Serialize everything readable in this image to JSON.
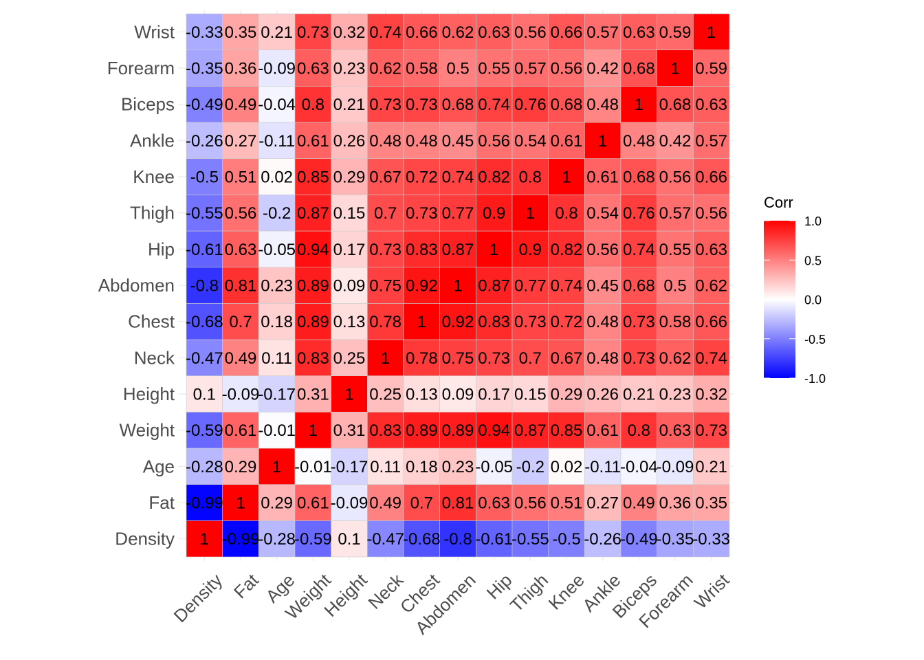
{
  "chart_data": {
    "type": "heatmap",
    "title": "",
    "xlabel": "",
    "ylabel": "",
    "variables": [
      "Density",
      "Fat",
      "Age",
      "Weight",
      "Height",
      "Neck",
      "Chest",
      "Abdomen",
      "Hip",
      "Thigh",
      "Knee",
      "Ankle",
      "Biceps",
      "Forearm",
      "Wrist"
    ],
    "x_order": "left-to-right",
    "y_order": "bottom-to-top",
    "matrix": [
      [
        1,
        -0.99,
        -0.28,
        -0.59,
        0.1,
        -0.47,
        -0.68,
        -0.8,
        -0.61,
        -0.55,
        -0.5,
        -0.26,
        -0.49,
        -0.35,
        -0.33
      ],
      [
        -0.99,
        1,
        0.29,
        0.61,
        -0.09,
        0.49,
        0.7,
        0.81,
        0.63,
        0.56,
        0.51,
        0.27,
        0.49,
        0.36,
        0.35
      ],
      [
        -0.28,
        0.29,
        1,
        -0.01,
        -0.17,
        0.11,
        0.18,
        0.23,
        -0.05,
        -0.2,
        0.02,
        -0.11,
        -0.04,
        -0.09,
        0.21
      ],
      [
        -0.59,
        0.61,
        -0.01,
        1,
        0.31,
        0.83,
        0.89,
        0.89,
        0.94,
        0.87,
        0.85,
        0.61,
        0.8,
        0.63,
        0.73
      ],
      [
        0.1,
        -0.09,
        -0.17,
        0.31,
        1,
        0.25,
        0.13,
        0.09,
        0.17,
        0.15,
        0.29,
        0.26,
        0.21,
        0.23,
        0.32
      ],
      [
        -0.47,
        0.49,
        0.11,
        0.83,
        0.25,
        1,
        0.78,
        0.75,
        0.73,
        0.7,
        0.67,
        0.48,
        0.73,
        0.62,
        0.74
      ],
      [
        -0.68,
        0.7,
        0.18,
        0.89,
        0.13,
        0.78,
        1,
        0.92,
        0.83,
        0.73,
        0.72,
        0.48,
        0.73,
        0.58,
        0.66
      ],
      [
        -0.8,
        0.81,
        0.23,
        0.89,
        0.09,
        0.75,
        0.92,
        1,
        0.87,
        0.77,
        0.74,
        0.45,
        0.68,
        0.5,
        0.62
      ],
      [
        -0.61,
        0.63,
        -0.05,
        0.94,
        0.17,
        0.73,
        0.83,
        0.87,
        1,
        0.9,
        0.82,
        0.56,
        0.74,
        0.55,
        0.63
      ],
      [
        -0.55,
        0.56,
        -0.2,
        0.87,
        0.15,
        0.7,
        0.73,
        0.77,
        0.9,
        1,
        0.8,
        0.54,
        0.76,
        0.57,
        0.56
      ],
      [
        -0.5,
        0.51,
        0.02,
        0.85,
        0.29,
        0.67,
        0.72,
        0.74,
        0.82,
        0.8,
        1,
        0.61,
        0.68,
        0.56,
        0.66
      ],
      [
        -0.26,
        0.27,
        -0.11,
        0.61,
        0.26,
        0.48,
        0.48,
        0.45,
        0.56,
        0.54,
        0.61,
        1,
        0.48,
        0.42,
        0.57
      ],
      [
        -0.49,
        0.49,
        -0.04,
        0.8,
        0.21,
        0.73,
        0.73,
        0.68,
        0.74,
        0.76,
        0.68,
        0.48,
        1,
        0.68,
        0.63
      ],
      [
        -0.35,
        0.36,
        -0.09,
        0.63,
        0.23,
        0.62,
        0.58,
        0.5,
        0.55,
        0.57,
        0.56,
        0.42,
        0.68,
        1,
        0.59
      ],
      [
        -0.33,
        0.35,
        0.21,
        0.73,
        0.32,
        0.74,
        0.66,
        0.62,
        0.63,
        0.56,
        0.66,
        0.57,
        0.63,
        0.59,
        1
      ]
    ],
    "color_scale": {
      "low": "#0000ff",
      "mid": "#ffffff",
      "high": "#ff0000",
      "limits": [
        -1,
        1
      ]
    },
    "legend": {
      "title": "Corr",
      "ticks": [
        "1.0",
        "0.5",
        "0.0",
        "-0.5",
        "-1.0"
      ],
      "tick_values": [
        1.0,
        0.5,
        0.0,
        -0.5,
        -1.0
      ],
      "placement": "right"
    },
    "grid": true,
    "cell_border_color": "#cccccc",
    "label_color": "#4d4d4d"
  }
}
